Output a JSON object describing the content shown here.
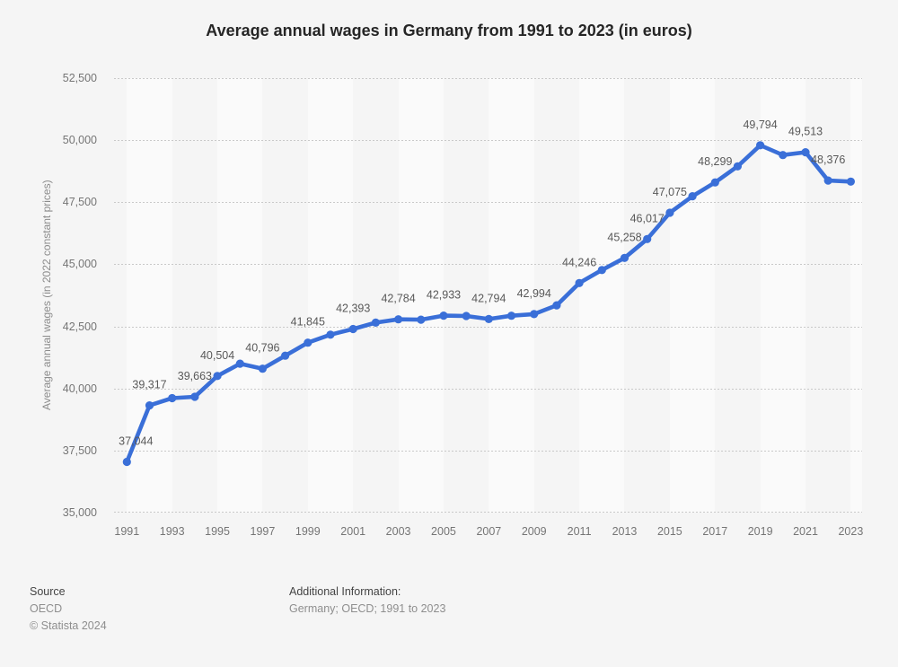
{
  "title": "Average annual wages in Germany from 1991 to 2023 (in euros)",
  "chart_data": {
    "type": "line",
    "x": [
      1991,
      1992,
      1993,
      1994,
      1995,
      1996,
      1997,
      1998,
      1999,
      2000,
      2001,
      2002,
      2003,
      2004,
      2005,
      2006,
      2007,
      2008,
      2009,
      2010,
      2011,
      2012,
      2013,
      2014,
      2015,
      2016,
      2017,
      2018,
      2019,
      2020,
      2021,
      2022,
      2023
    ],
    "values": [
      37044,
      39317,
      39610,
      39663,
      40504,
      41000,
      40796,
      41320,
      41845,
      42165,
      42393,
      42650,
      42784,
      42770,
      42933,
      42920,
      42794,
      42930,
      42994,
      43350,
      44246,
      44770,
      45258,
      46017,
      47075,
      47740,
      48299,
      48945,
      49794,
      49400,
      49513,
      48376,
      48330
    ],
    "point_labels": [
      "37,044",
      "39,317",
      null,
      "39,663",
      "40,504",
      null,
      "40,796",
      null,
      "41,845",
      null,
      "42,393",
      null,
      "42,784",
      null,
      "42,933",
      null,
      "42,794",
      null,
      "42,994",
      null,
      "44,246",
      null,
      "45,258",
      "46,017",
      "47,075",
      null,
      "48,299",
      null,
      "49,794",
      null,
      "49,513",
      "48,376",
      null
    ],
    "title": "Average annual wages in Germany from 1991 to 2023 (in euros)",
    "xlabel": "",
    "ylabel": "Average annual wages (in 2022 constant prices)",
    "ylim": [
      35000,
      52500
    ],
    "yticks": [
      35000,
      37500,
      40000,
      42500,
      45000,
      47500,
      50000,
      52500
    ],
    "ytick_labels": [
      "35,000",
      "37,500",
      "40,000",
      "42,500",
      "45,000",
      "47,500",
      "50,000",
      "52,500"
    ],
    "xtick_labels": [
      "1991",
      "1993",
      "1995",
      "1997",
      "1999",
      "2001",
      "2003",
      "2005",
      "2007",
      "2009",
      "2011",
      "2013",
      "2015",
      "2017",
      "2019",
      "2021",
      "2023"
    ],
    "grid": "horizontal-dotted",
    "legend": "none",
    "line_color": "#3a6fd8",
    "marker": "circle"
  },
  "footer": {
    "source_label": "Source",
    "source_value": "OECD",
    "copyright": "© Statista 2024",
    "additional_info_label": "Additional Information:",
    "additional_info_value": "Germany; OECD; 1991 to 2023"
  },
  "colors": {
    "background": "#f5f5f5",
    "band_light": "#fafafa",
    "gridline": "#c9c9c9",
    "line": "#3a6fd8",
    "point_label_text": "#595959",
    "tick_text": "#757575",
    "title_text": "#262626"
  }
}
